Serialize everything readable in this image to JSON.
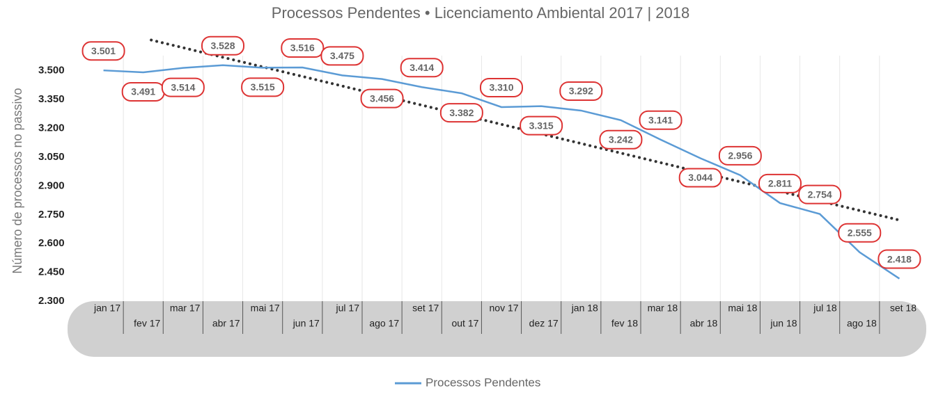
{
  "chart_data": {
    "type": "line",
    "title": "Processos Pendentes • Licenciamento Ambiental 2017 | 2018",
    "y_label": "Número de processos no passivo",
    "categories": [
      "jan 17",
      "fev 17",
      "mar 17",
      "abr 17",
      "mai 17",
      "jun 17",
      "jul 17",
      "ago 17",
      "set 17",
      "out 17",
      "nov 17",
      "dez 17",
      "jan 18",
      "fev 18",
      "mar 18",
      "abr 18",
      "mai 18",
      "jun 18",
      "jul 18",
      "ago 18",
      "set 18"
    ],
    "series": [
      {
        "name": "Processos Pendentes",
        "color": "#5b9bd5",
        "values": [
          3501,
          3491,
          3514,
          3528,
          3515,
          3516,
          3475,
          3456,
          3414,
          3382,
          3310,
          3315,
          3292,
          3242,
          3141,
          3044,
          2956,
          2811,
          2754,
          2555,
          2418
        ],
        "value_labels": [
          "3.501",
          "3.491",
          "3.514",
          "3.528",
          "3.515",
          "3.516",
          "3.475",
          "3.456",
          "3.414",
          "3.382",
          "3.310",
          "3.315",
          "3.292",
          "3.242",
          "3.141",
          "3.044",
          "2.956",
          "2.811",
          "2.754",
          "2.555",
          "2.418"
        ]
      }
    ],
    "trendline": true,
    "ylim": [
      2250,
      3650
    ],
    "yticks": [
      {
        "value": 2300,
        "label": "2.300"
      },
      {
        "value": 2450,
        "label": "2.450"
      },
      {
        "value": 2600,
        "label": "2.600"
      },
      {
        "value": 2750,
        "label": "2.750"
      },
      {
        "value": 2900,
        "label": "2.900"
      },
      {
        "value": 3050,
        "label": "3.050"
      },
      {
        "value": 3200,
        "label": "3.200"
      },
      {
        "value": 3350,
        "label": "3.350"
      },
      {
        "value": 3500,
        "label": "3.500"
      }
    ],
    "grid": true,
    "legend": "bottom"
  }
}
